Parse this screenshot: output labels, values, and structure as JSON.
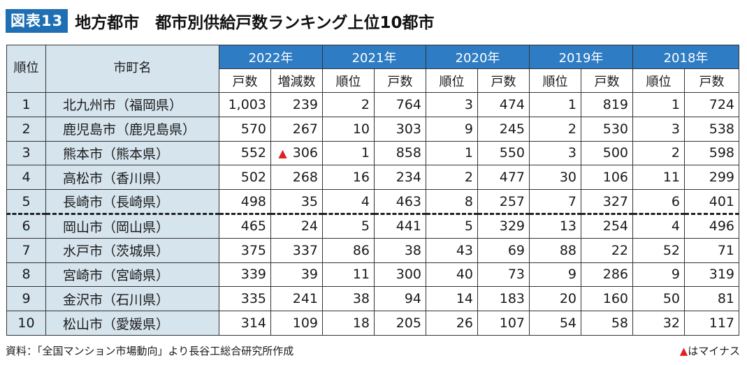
{
  "header": {
    "badge": "図表13",
    "title": "地方都市　都市別供給戸数ランキング上位10都市"
  },
  "table": {
    "rank_header": "順位",
    "city_header": "市町名",
    "years": [
      "2022年",
      "2021年",
      "2020年",
      "2019年",
      "2018年"
    ],
    "sub_headers": [
      "戸数",
      "増減数",
      "順位",
      "戸数",
      "順位",
      "戸数",
      "順位",
      "戸数",
      "順位",
      "戸数"
    ],
    "rows": [
      {
        "rank": "1",
        "city": "北九州市（福岡県）",
        "cells": [
          "1,003",
          "239",
          "2",
          "764",
          "3",
          "474",
          "1",
          "819",
          "1",
          "724"
        ],
        "neg": false
      },
      {
        "rank": "2",
        "city": "鹿児島市（鹿児島県）",
        "cells": [
          "570",
          "267",
          "10",
          "303",
          "9",
          "245",
          "2",
          "530",
          "3",
          "538"
        ],
        "neg": false
      },
      {
        "rank": "3",
        "city": "熊本市（熊本県）",
        "cells": [
          "552",
          "306",
          "1",
          "858",
          "1",
          "550",
          "3",
          "500",
          "2",
          "598"
        ],
        "neg": true
      },
      {
        "rank": "4",
        "city": "高松市（香川県）",
        "cells": [
          "502",
          "268",
          "16",
          "234",
          "2",
          "477",
          "30",
          "106",
          "11",
          "299"
        ],
        "neg": false
      },
      {
        "rank": "5",
        "city": "長崎市（長崎県）",
        "cells": [
          "498",
          "35",
          "4",
          "463",
          "8",
          "257",
          "7",
          "327",
          "6",
          "401"
        ],
        "neg": false
      },
      {
        "rank": "6",
        "city": "岡山市（岡山県）",
        "cells": [
          "465",
          "24",
          "5",
          "441",
          "5",
          "329",
          "13",
          "254",
          "4",
          "496"
        ],
        "neg": false
      },
      {
        "rank": "7",
        "city": "水戸市（茨城県）",
        "cells": [
          "375",
          "337",
          "86",
          "38",
          "43",
          "69",
          "88",
          "22",
          "52",
          "71"
        ],
        "neg": false
      },
      {
        "rank": "8",
        "city": "宮崎市（宮崎県）",
        "cells": [
          "339",
          "39",
          "11",
          "300",
          "40",
          "73",
          "9",
          "286",
          "9",
          "319"
        ],
        "neg": false
      },
      {
        "rank": "9",
        "city": "金沢市（石川県）",
        "cells": [
          "335",
          "241",
          "38",
          "94",
          "14",
          "183",
          "20",
          "160",
          "50",
          "81"
        ],
        "neg": false
      },
      {
        "rank": "10",
        "city": "松山市（愛媛県）",
        "cells": [
          "314",
          "109",
          "18",
          "205",
          "26",
          "107",
          "54",
          "58",
          "32",
          "117"
        ],
        "neg": false
      }
    ]
  },
  "footer": {
    "source": "資料：「全国マンション市場動向」より長谷工総合研究所作成",
    "note_mark": "▲",
    "note_text": "はマイナス"
  },
  "chart_data": {
    "type": "table",
    "title": "地方都市　都市別供給戸数ランキング上位10都市",
    "columns": [
      "順位",
      "市町名",
      "2022年 戸数",
      "2022年 増減数",
      "2021年 順位",
      "2021年 戸数",
      "2020年 順位",
      "2020年 戸数",
      "2019年 順位",
      "2019年 戸数",
      "2018年 順位",
      "2018年 戸数"
    ],
    "rows": [
      [
        1,
        "北九州市（福岡県）",
        1003,
        239,
        2,
        764,
        3,
        474,
        1,
        819,
        1,
        724
      ],
      [
        2,
        "鹿児島市（鹿児島県）",
        570,
        267,
        10,
        303,
        9,
        245,
        2,
        530,
        3,
        538
      ],
      [
        3,
        "熊本市（熊本県）",
        552,
        -306,
        1,
        858,
        1,
        550,
        3,
        500,
        2,
        598
      ],
      [
        4,
        "高松市（香川県）",
        502,
        268,
        16,
        234,
        2,
        477,
        30,
        106,
        11,
        299
      ],
      [
        5,
        "長崎市（長崎県）",
        498,
        35,
        4,
        463,
        8,
        257,
        7,
        327,
        6,
        401
      ],
      [
        6,
        "岡山市（岡山県）",
        465,
        24,
        5,
        441,
        5,
        329,
        13,
        254,
        4,
        496
      ],
      [
        7,
        "水戸市（茨城県）",
        375,
        337,
        86,
        38,
        43,
        69,
        88,
        22,
        52,
        71
      ],
      [
        8,
        "宮崎市（宮崎県）",
        339,
        39,
        11,
        300,
        40,
        73,
        9,
        286,
        9,
        319
      ],
      [
        9,
        "金沢市（石川県）",
        335,
        241,
        38,
        94,
        14,
        183,
        20,
        160,
        50,
        81
      ],
      [
        10,
        "松山市（愛媛県）",
        314,
        109,
        18,
        205,
        26,
        107,
        54,
        58,
        32,
        117
      ]
    ]
  }
}
